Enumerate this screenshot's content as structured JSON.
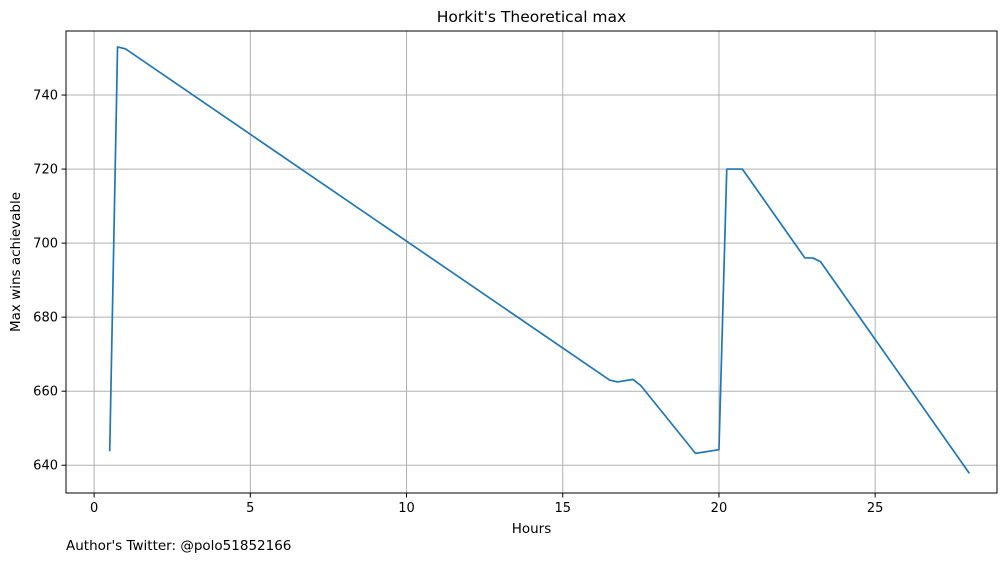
{
  "chart_data": {
    "type": "line",
    "title": "Horkit's Theoretical max",
    "xlabel": "Hours",
    "ylabel": "Max wins achievable",
    "xlim": [
      -0.9,
      28.9
    ],
    "ylim": [
      632.5,
      757.3
    ],
    "xticks": [
      0,
      5,
      10,
      15,
      20,
      25
    ],
    "yticks": [
      640,
      660,
      680,
      700,
      720,
      740
    ],
    "grid": true,
    "legend": "none",
    "footer_note": "Author's Twitter: @polo51852166",
    "series": [
      {
        "color": "#1f77b4",
        "x": [
          0.5,
          0.75,
          1.0,
          16.5,
          16.75,
          17.25,
          17.5,
          19.25,
          20.0,
          20.25,
          20.75,
          22.75,
          23.0,
          23.25,
          28.0
        ],
        "y": [
          644,
          753,
          752.5,
          663,
          662.5,
          663.2,
          661.5,
          643.2,
          644.2,
          720,
          720,
          696,
          696,
          695,
          638
        ]
      }
    ]
  },
  "colors": {
    "line": "#1f77b4",
    "grid": "#b0b0b0",
    "axes": "#000000",
    "background": "#ffffff"
  }
}
